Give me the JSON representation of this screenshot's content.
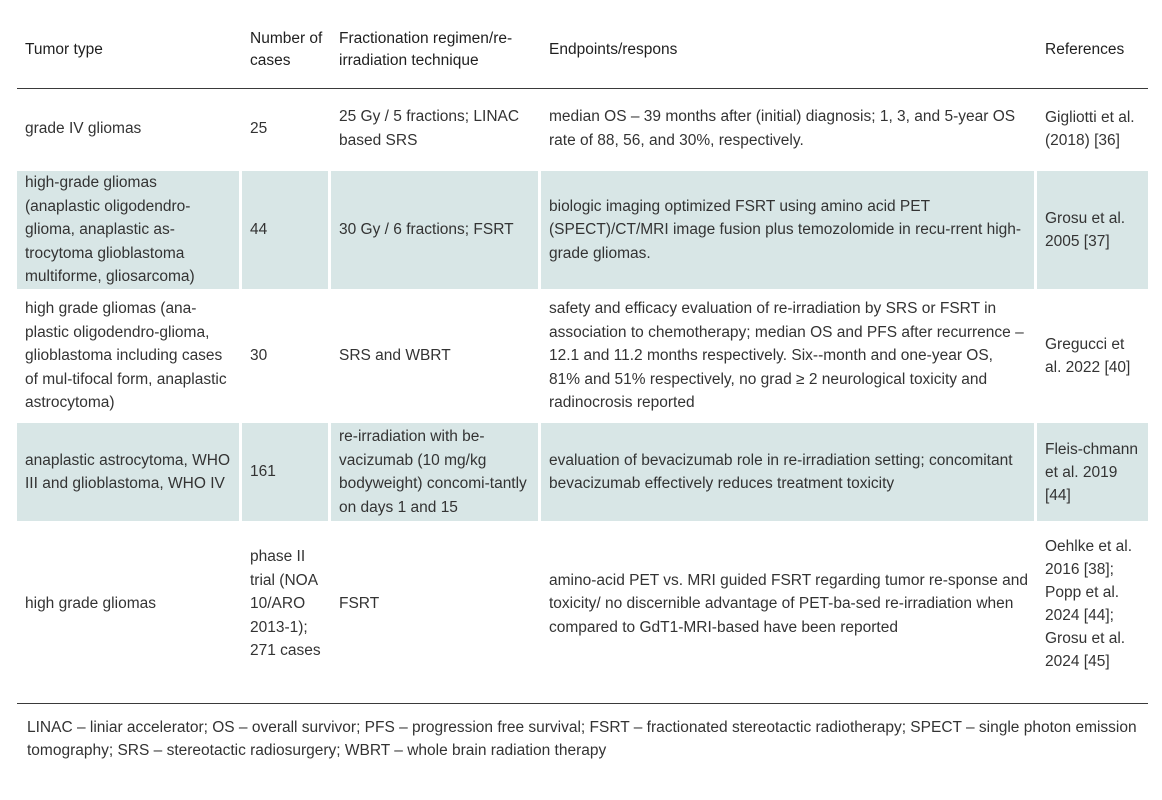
{
  "table": {
    "headers": [
      "Tumor type",
      "Number of cases",
      "Fractionation regimen/re-irradiation technique",
      "Endpoints/respons",
      "References"
    ],
    "rows": [
      {
        "tumor_type": "grade IV gliomas",
        "cases": "25",
        "fractionation": "25 Gy / 5 fractions; LINAC based SRS",
        "endpoints": "median OS – 39 months after (initial) diagnosis; 1, 3, and 5-year OS rate of 88, 56, and 30%, respectively.",
        "references": "Gigliotti et al. (2018) [36]"
      },
      {
        "tumor_type": "high-grade gliomas (anaplastic oligodendro-glioma, anaplastic as-trocytoma glioblastoma multiforme, gliosarcoma)",
        "cases": "44",
        "fractionation": "30 Gy / 6 fractions; FSRT",
        "endpoints": "biologic imaging optimized FSRT using amino acid PET (SPECT)/CT/MRI image fusion plus temozolomide in recu-rrent high-grade gliomas.",
        "references": "Grosu et al. 2005 [37]"
      },
      {
        "tumor_type": "high grade gliomas (ana-plastic oligodendro-glioma, glioblastoma including cases of mul-tifocal form, anaplastic astrocytoma)",
        "cases": "30",
        "fractionation": "SRS and WBRT",
        "endpoints": "safety and efficacy evaluation of re-irradiation by SRS or FSRT in association to chemotherapy; median OS and PFS after recurrence – 12.1 and 11.2 months respectively. Six--month and one-year OS, 81% and 51% respectively, no grad ≥ 2 neurological toxicity and radinocrosis reported",
        "references": "Gregucci et al. 2022 [40]"
      },
      {
        "tumor_type": "anaplastic astrocytoma, WHO III and glioblastoma, WHO IV",
        "cases": "161",
        "fractionation": "re-irradiation with be-vacizumab (10 mg/kg bodyweight) concomi-tantly on days 1 and 15",
        "endpoints": "evaluation of bevacizumab role in re-irradiation setting; concomitant bevacizumab effectively reduces treatment toxicity",
        "references": "Fleis-chmann et al. 2019 [44]"
      },
      {
        "tumor_type": "high grade gliomas",
        "cases": "phase II trial (NOA 10/ARO 2013-1); 271 cases",
        "fractionation": "FSRT",
        "endpoints": "amino-acid PET vs. MRI guided FSRT regarding tumor re-sponse and toxicity/ no discernible advantage of PET-ba-sed re-irradiation when compared to GdT1-MRI-based have been reported",
        "references": "Oehlke et al. 2016 [38]; Popp et al. 2024 [44]; Grosu et al. 2024 [45]"
      }
    ]
  },
  "footnote": "LINAC – liniar accelerator; OS – overall survivor; PFS – progression free survival; FSRT – fractionated stereotactic radiotherapy; SPECT – single photon emission tomography; SRS – stereotactic radiosurgery; WBRT – whole brain radiation therapy",
  "colors": {
    "shaded_row": "#d8e6e6",
    "rule": "#3a3a3a",
    "text": "#333333"
  }
}
